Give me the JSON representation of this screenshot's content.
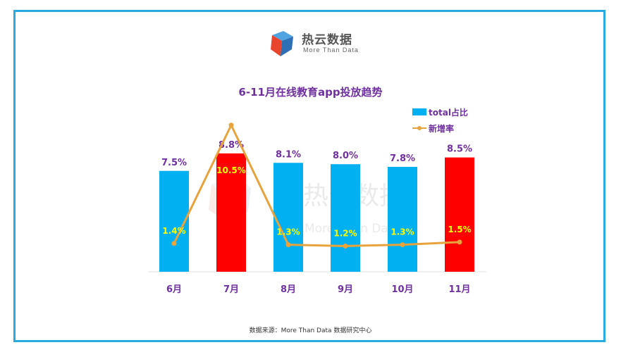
{
  "logo": {
    "name": "热云数据",
    "tagline": "More Than Data"
  },
  "watermark": {
    "name": "热云数据",
    "tagline": "More Than Data"
  },
  "source_note": "数据来源：More Than Data 数据研究中心",
  "colors": {
    "frame": "#29abe2",
    "bar_blue": "#00b0f0",
    "bar_red": "#ff0000",
    "line": "#e8a33c",
    "label_purple": "#7030a0",
    "label_yellow": "#ffff00"
  },
  "chart_data": {
    "type": "bar",
    "title": "6-11月在线教育app投放趋势",
    "categories": [
      "6月",
      "7月",
      "8月",
      "9月",
      "10月",
      "11月"
    ],
    "series": [
      {
        "name": "total占比",
        "type": "bar",
        "values": [
          7.5,
          8.8,
          8.1,
          8.0,
          7.8,
          8.5
        ],
        "labels": [
          "7.5%",
          "8.8%",
          "8.1%",
          "8.0%",
          "7.8%",
          "8.5%"
        ],
        "bar_colors": [
          "#00b0f0",
          "#ff0000",
          "#00b0f0",
          "#00b0f0",
          "#00b0f0",
          "#ff0000"
        ]
      },
      {
        "name": "新增率",
        "type": "line",
        "values": [
          1.4,
          10.5,
          1.3,
          1.2,
          1.3,
          1.5
        ],
        "labels": [
          "1.4%",
          "10.5%",
          "1.3%",
          "1.2%",
          "1.3%",
          "1.5%"
        ]
      }
    ],
    "legend_position": "top-right",
    "grid": false
  }
}
